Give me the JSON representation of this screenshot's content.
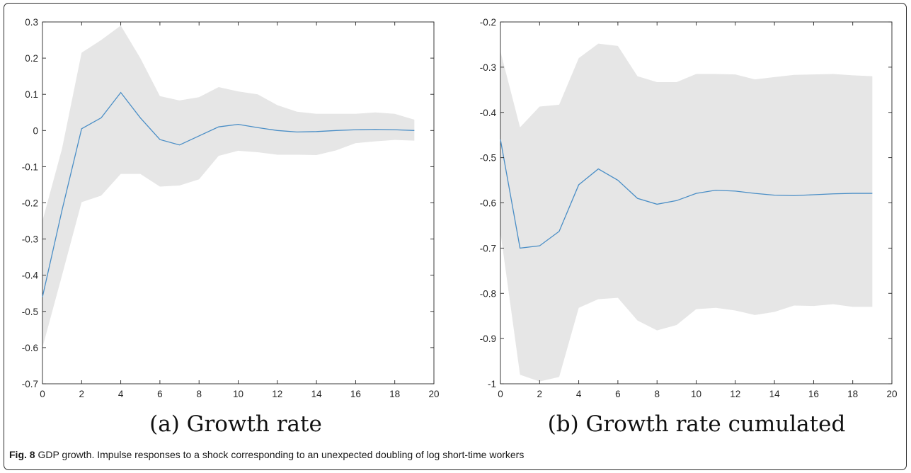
{
  "caption": {
    "label": "Fig. 8",
    "text": "GDP growth. Impulse responses to a shock corresponding to an unexpected doubling of log short-time workers"
  },
  "colors": {
    "band": "#e6e6e6",
    "line": "#4a8ec6",
    "axis": "#262626"
  },
  "chart_data": [
    {
      "type": "line",
      "subcaption": "(a) Growth rate",
      "x": [
        0,
        1,
        2,
        3,
        4,
        5,
        6,
        7,
        8,
        9,
        10,
        11,
        12,
        13,
        14,
        15,
        16,
        17,
        18,
        19
      ],
      "series": [
        {
          "values": [
            -0.46,
            -0.22,
            0.005,
            0.035,
            0.105,
            0.035,
            -0.025,
            -0.04,
            -0.015,
            0.01,
            0.017,
            0.008,
            0.0,
            -0.004,
            -0.003,
            0.0,
            0.002,
            0.003,
            0.002,
            0.0
          ]
        }
      ],
      "band_upper": [
        -0.25,
        -0.05,
        0.215,
        0.25,
        0.29,
        0.2,
        0.095,
        0.083,
        0.092,
        0.12,
        0.108,
        0.1,
        0.07,
        0.052,
        0.046,
        0.046,
        0.046,
        0.05,
        0.046,
        0.03
      ],
      "band_lower": [
        -0.6,
        -0.4,
        -0.198,
        -0.18,
        -0.12,
        -0.12,
        -0.155,
        -0.152,
        -0.135,
        -0.07,
        -0.056,
        -0.06,
        -0.067,
        -0.067,
        -0.068,
        -0.055,
        -0.035,
        -0.03,
        -0.026,
        -0.028
      ],
      "xlim": [
        0,
        20
      ],
      "ylim": [
        -0.7,
        0.3
      ],
      "xticks": [
        0,
        2,
        4,
        6,
        8,
        10,
        12,
        14,
        16,
        18,
        20
      ],
      "xtick_labels": [
        "0",
        "2",
        "4",
        "6",
        "8",
        "10",
        "12",
        "14",
        "16",
        "18",
        "20"
      ],
      "yticks": [
        0.3,
        0.2,
        0.1,
        0,
        -0.1,
        -0.2,
        -0.3,
        -0.4,
        -0.5,
        -0.6,
        -0.7
      ],
      "ytick_labels": [
        "0.3",
        "0.2",
        "0.1",
        "0",
        "-0.1",
        "-0.2",
        "-0.3",
        "-0.4",
        "-0.5",
        "-0.6",
        "-0.7"
      ],
      "grid": false
    },
    {
      "type": "line",
      "subcaption": "(b) Growth rate cumulated",
      "x": [
        0,
        1,
        2,
        3,
        4,
        5,
        6,
        7,
        8,
        9,
        10,
        11,
        12,
        13,
        14,
        15,
        16,
        17,
        18,
        19
      ],
      "series": [
        {
          "values": [
            -0.46,
            -0.7,
            -0.695,
            -0.663,
            -0.56,
            -0.525,
            -0.55,
            -0.59,
            -0.603,
            -0.595,
            -0.579,
            -0.572,
            -0.574,
            -0.579,
            -0.583,
            -0.584,
            -0.582,
            -0.58,
            -0.579,
            -0.579
          ]
        }
      ],
      "band_upper": [
        -0.265,
        -0.433,
        -0.387,
        -0.383,
        -0.28,
        -0.248,
        -0.253,
        -0.32,
        -0.333,
        -0.333,
        -0.315,
        -0.315,
        -0.316,
        -0.327,
        -0.322,
        -0.317,
        -0.316,
        -0.315,
        -0.318,
        -0.32
      ],
      "band_lower": [
        -0.665,
        -0.98,
        -0.995,
        -0.985,
        -0.832,
        -0.813,
        -0.81,
        -0.86,
        -0.882,
        -0.87,
        -0.835,
        -0.832,
        -0.838,
        -0.848,
        -0.841,
        -0.827,
        -0.828,
        -0.824,
        -0.83,
        -0.83
      ],
      "xlim": [
        0,
        20
      ],
      "ylim": [
        -1,
        -0.2
      ],
      "xticks": [
        0,
        2,
        4,
        6,
        8,
        10,
        12,
        14,
        16,
        18,
        20
      ],
      "xtick_labels": [
        "0",
        "2",
        "4",
        "6",
        "8",
        "10",
        "12",
        "14",
        "16",
        "18",
        "20"
      ],
      "yticks": [
        -0.2,
        -0.3,
        -0.4,
        -0.5,
        -0.6,
        -0.7,
        -0.8,
        -0.9,
        -1
      ],
      "ytick_labels": [
        "-0.2",
        "-0.3",
        "-0.4",
        "-0.5",
        "-0.6",
        "-0.7",
        "-0.8",
        "-0.9",
        "-1"
      ],
      "grid": false
    }
  ]
}
